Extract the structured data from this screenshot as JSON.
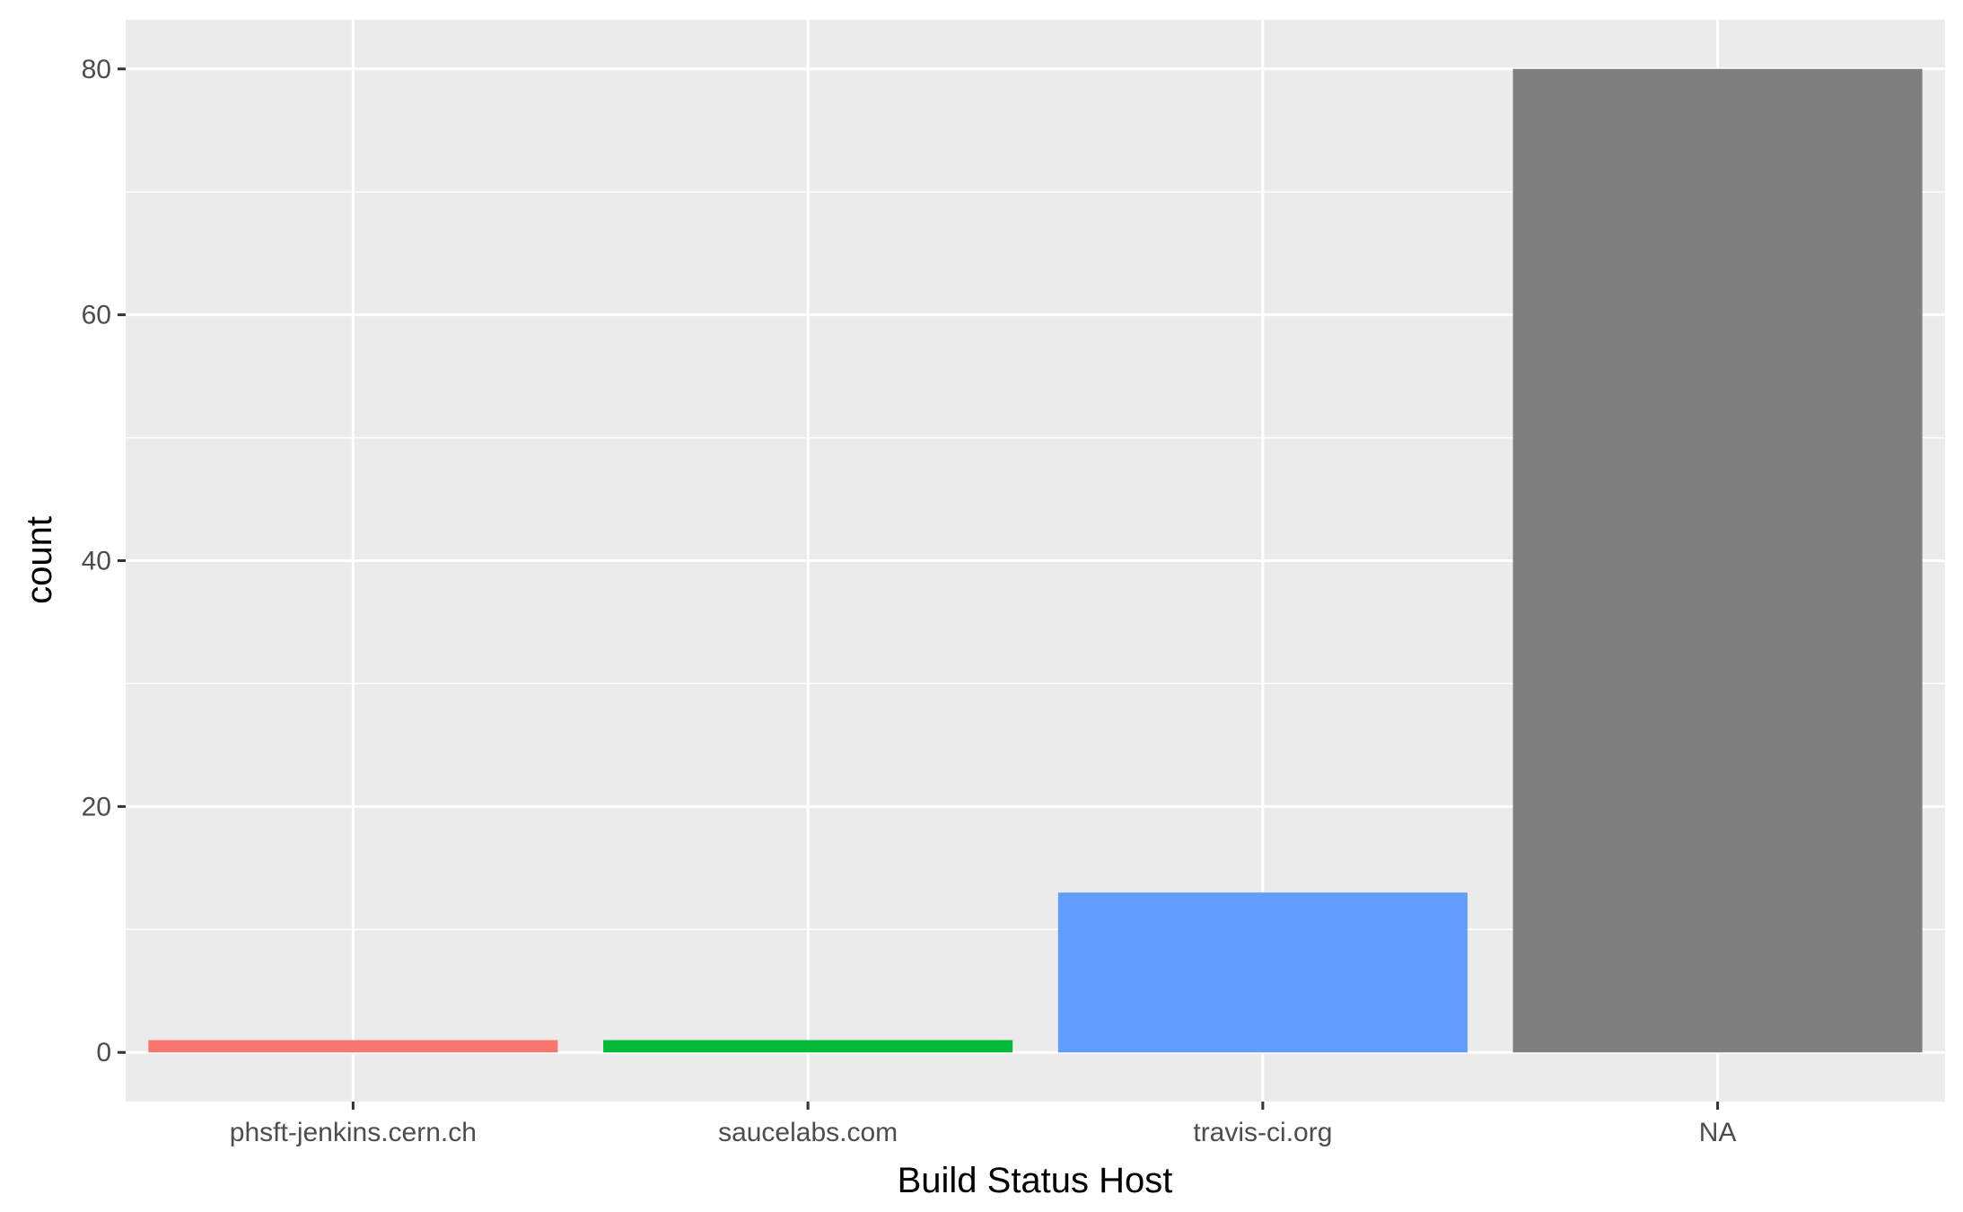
{
  "chart_data": {
    "type": "bar",
    "title": "",
    "xlabel": "Build Status Host",
    "ylabel": "count",
    "categories": [
      "phsft-jenkins.cern.ch",
      "saucelabs.com",
      "travis-ci.org",
      "NA"
    ],
    "values": [
      1,
      1,
      13,
      80
    ],
    "colors": [
      "#F8766D",
      "#00BA38",
      "#619CFF",
      "#7F7F7F"
    ],
    "ylim": [
      -4,
      84
    ],
    "yticks": [
      0,
      20,
      40,
      60,
      80
    ],
    "ytick_labels": [
      "0",
      "20",
      "40",
      "60",
      "80"
    ],
    "yminor": [
      10,
      30,
      50,
      70
    ],
    "grid": true,
    "legend": "none",
    "panel_background": "#EBEBEB",
    "grid_color": "#FFFFFF"
  }
}
